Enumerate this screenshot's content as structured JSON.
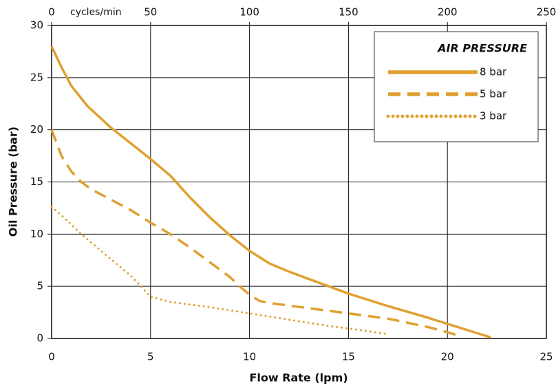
{
  "chart_data": {
    "type": "line",
    "xlabel": "Flow Rate (lpm)",
    "ylabel": "Oil Pressure (bar)",
    "x2label": "cycles/min",
    "legend_title": "AIR PRESSURE",
    "legend": "upper right",
    "grid": true,
    "xlim": [
      0,
      25
    ],
    "xticks": [
      0,
      5,
      10,
      15,
      20,
      25
    ],
    "ylim": [
      0,
      30
    ],
    "yticks": [
      0,
      5,
      10,
      15,
      20,
      25,
      30
    ],
    "x2lim": [
      0,
      250
    ],
    "x2ticks": [
      0,
      50,
      100,
      150,
      200,
      250
    ],
    "series": [
      {
        "name": "8 bar",
        "color": "#dfa030",
        "style": "solid",
        "x": [
          0,
          0.5,
          1,
          1.8,
          3,
          4,
          5,
          6,
          7,
          8,
          9,
          10,
          11,
          12,
          13,
          14,
          15,
          17,
          19,
          20,
          22.2
        ],
        "values": [
          28,
          26,
          24.2,
          22.3,
          20.2,
          18.7,
          17.2,
          15.6,
          13.5,
          11.6,
          9.9,
          8.4,
          7.2,
          6.4,
          5.7,
          5,
          4.3,
          3.1,
          2,
          1.4,
          0.1
        ]
      },
      {
        "name": "5 bar",
        "color": "#dfa030",
        "style": "dashed",
        "x": [
          0,
          0.5,
          1,
          1.5,
          2,
          3,
          4,
          5,
          6,
          7,
          8,
          9,
          9.5,
          10,
          10.5,
          11,
          13,
          15,
          17,
          19,
          20,
          20.7
        ],
        "values": [
          20,
          17.5,
          16,
          15,
          14.3,
          13.3,
          12.3,
          11.1,
          10,
          8.7,
          7.3,
          5.9,
          5,
          4.2,
          3.6,
          3.4,
          2.9,
          2.4,
          1.9,
          1.1,
          0.6,
          0.2
        ]
      },
      {
        "name": "3 bar",
        "color": "#dfa030",
        "style": "dotted",
        "x": [
          0,
          0.5,
          1,
          1.5,
          2,
          3,
          4,
          4.5,
          5,
          6,
          8,
          10,
          12,
          14,
          16,
          17
        ],
        "values": [
          12.6,
          11.8,
          10.9,
          10,
          9.2,
          7.6,
          6,
          5,
          4,
          3.5,
          3,
          2.4,
          1.8,
          1.2,
          0.7,
          0.4
        ]
      }
    ]
  }
}
